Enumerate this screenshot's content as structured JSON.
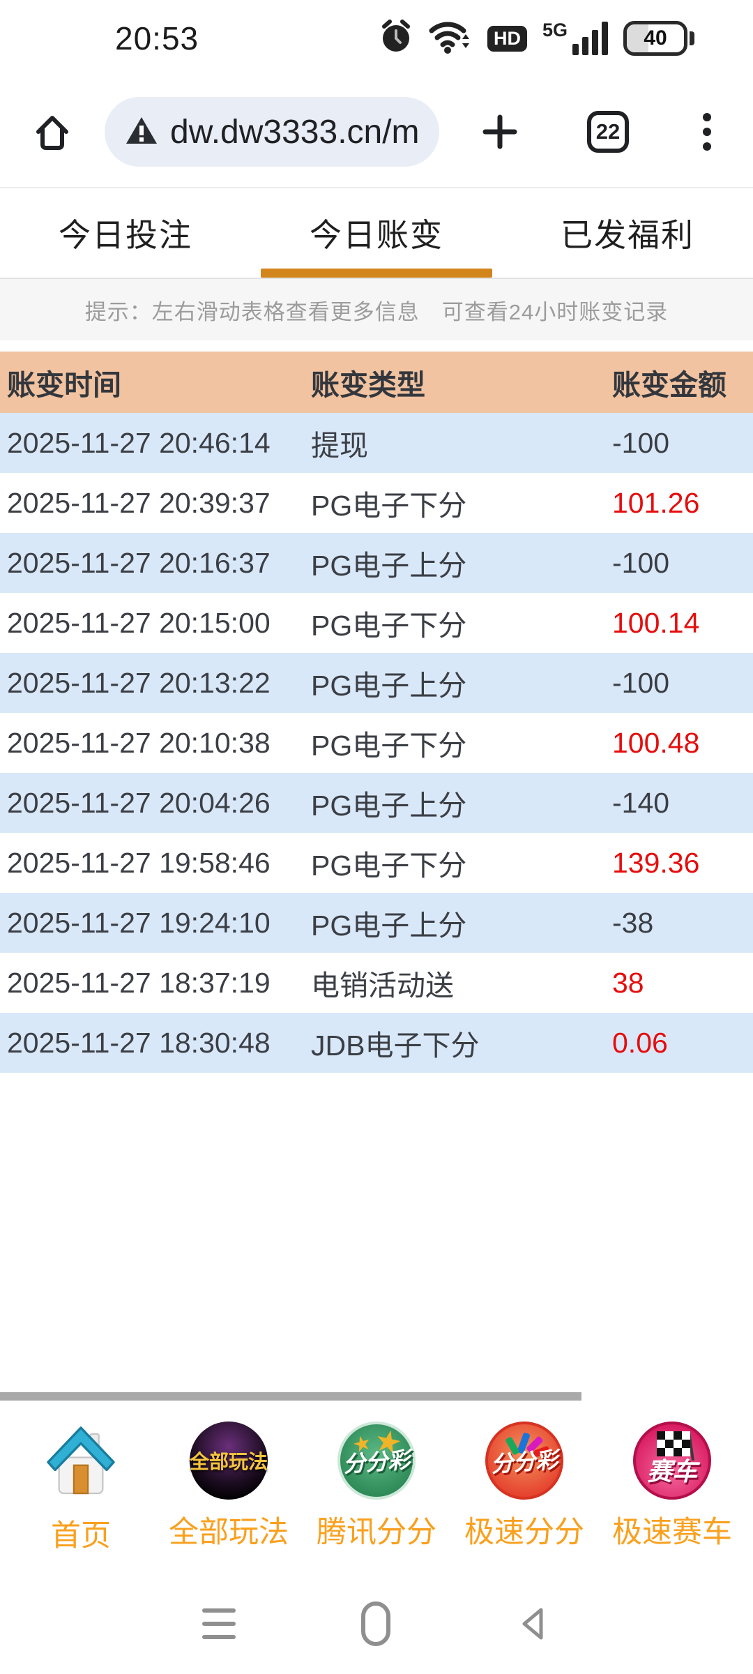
{
  "status_bar": {
    "time": "20:53",
    "hd_label": "HD",
    "network_label": "5G",
    "battery_level": "40",
    "icons": [
      "alarm-icon",
      "wifi-icon",
      "hd-badge",
      "signal-bars",
      "battery"
    ]
  },
  "browser": {
    "url": "dw.dw3333.cn/m",
    "tab_count": "22",
    "security_icon": "warning-triangle"
  },
  "tabs": [
    {
      "label": "今日投注",
      "active": false
    },
    {
      "label": "今日账变",
      "active": true
    },
    {
      "label": "已发福利",
      "active": false
    }
  ],
  "hint": "提示：左右滑动表格查看更多信息　可查看24小时账变记录",
  "table": {
    "headers": [
      "账变时间",
      "账变类型",
      "账变金额"
    ],
    "rows": [
      [
        "2025-11-27 20:46:14",
        "提现",
        "-100"
      ],
      [
        "2025-11-27 20:39:37",
        "PG电子下分",
        "101.26"
      ],
      [
        "2025-11-27 20:16:37",
        "PG电子上分",
        "-100"
      ],
      [
        "2025-11-27 20:15:00",
        "PG电子下分",
        "100.14"
      ],
      [
        "2025-11-27 20:13:22",
        "PG电子上分",
        "-100"
      ],
      [
        "2025-11-27 20:10:38",
        "PG电子下分",
        "100.48"
      ],
      [
        "2025-11-27 20:04:26",
        "PG电子上分",
        "-140"
      ],
      [
        "2025-11-27 19:58:46",
        "PG电子下分",
        "139.36"
      ],
      [
        "2025-11-27 19:24:10",
        "PG电子上分",
        "-38"
      ],
      [
        "2025-11-27 18:37:19",
        "电销活动送",
        "38"
      ],
      [
        "2025-11-27 18:30:48",
        "JDB电子下分",
        "0.06"
      ]
    ]
  },
  "bottom_nav": [
    {
      "label": "首页",
      "icon": "home-3d-icon"
    },
    {
      "label": "全部玩法",
      "icon": "all-games-icon",
      "icon_text": "全部玩法"
    },
    {
      "label": "腾讯分分",
      "icon": "green-lottery-icon",
      "icon_text": "分分彩"
    },
    {
      "label": "极速分分",
      "icon": "red-lottery-icon",
      "icon_text": "分分彩"
    },
    {
      "label": "极速赛车",
      "icon": "racing-icon",
      "icon_text": "赛车"
    }
  ],
  "colors": {
    "accent": "#d2851b",
    "header_bg": "#f1c3a1",
    "row_alt": "#d9e8f9",
    "positive": "#e60d0d",
    "nav_label": "#f9a01e"
  }
}
